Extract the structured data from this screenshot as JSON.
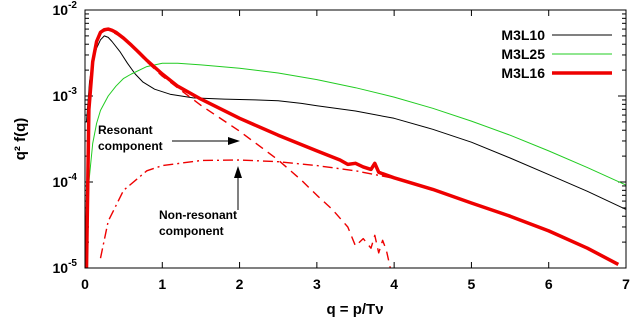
{
  "chart_data": {
    "type": "line",
    "xlabel": "q = p/Tν",
    "ylabel": "q² f(q)",
    "xlim": [
      0,
      7
    ],
    "ylim": [
      1e-05,
      0.01
    ],
    "yscale": "log",
    "x_ticks": [
      "0",
      "1",
      "2",
      "3",
      "4",
      "5",
      "6",
      "7"
    ],
    "y_ticks": [
      "10-5",
      "10-4",
      "10-3",
      "10-2"
    ],
    "legend_position": "top-right",
    "series": [
      {
        "name": "M3L10",
        "color": "#000000",
        "style": "solid",
        "width": "thin",
        "x": [
          0.02,
          0.06,
          0.1,
          0.15,
          0.2,
          0.25,
          0.3,
          0.35,
          0.45,
          0.55,
          0.65,
          0.75,
          0.9,
          1.1,
          1.4,
          1.8,
          2.2,
          2.5,
          2.8,
          3.0,
          3.5,
          4.0,
          4.5,
          5.0,
          5.5,
          6.0,
          6.5,
          7.0
        ],
        "y": [
          0.0005,
          0.0015,
          0.0025,
          0.0036,
          0.0045,
          0.005,
          0.0048,
          0.0043,
          0.0033,
          0.0024,
          0.0018,
          0.00145,
          0.0012,
          0.00105,
          0.00095,
          0.00092,
          0.0009,
          0.00088,
          0.00082,
          0.00077,
          0.00067,
          0.00055,
          0.00041,
          0.00029,
          0.00019,
          0.000122,
          7.8e-05,
          4.8e-05
        ]
      },
      {
        "name": "M3L25",
        "color": "#22cc22",
        "style": "solid",
        "width": "thin",
        "x": [
          0.02,
          0.05,
          0.1,
          0.15,
          0.2,
          0.3,
          0.4,
          0.5,
          0.6,
          0.8,
          1.0,
          1.2,
          1.5,
          2.0,
          2.5,
          3.0,
          3.5,
          4.0,
          4.5,
          5.0,
          5.5,
          6.0,
          6.5,
          7.0
        ],
        "y": [
          1e-05,
          0.0001,
          0.00028,
          0.00048,
          0.00068,
          0.001,
          0.0013,
          0.0016,
          0.0018,
          0.0022,
          0.0024,
          0.0024,
          0.0023,
          0.0021,
          0.00185,
          0.00155,
          0.00125,
          0.00097,
          0.00072,
          0.00051,
          0.00035,
          0.00023,
          0.000147,
          9.2e-05
        ]
      },
      {
        "name": "M3L16",
        "color": "#ee0000",
        "style": "solid",
        "width": "thick",
        "x": [
          0.02,
          0.05,
          0.1,
          0.15,
          0.2,
          0.25,
          0.3,
          0.35,
          0.4,
          0.5,
          0.6,
          0.7,
          0.8,
          1.0,
          1.2,
          1.5,
          2.0,
          2.5,
          3.0,
          3.3,
          3.4,
          3.5,
          3.6,
          3.7,
          3.75,
          3.8,
          3.85,
          4.0,
          4.5,
          5.0,
          5.5,
          6.0,
          6.5,
          6.9
        ],
        "y": [
          1e-05,
          0.0007,
          0.0025,
          0.0043,
          0.0055,
          0.0059,
          0.006,
          0.0058,
          0.0055,
          0.0047,
          0.0039,
          0.0032,
          0.0026,
          0.0018,
          0.0013,
          0.00092,
          0.00055,
          0.00035,
          0.00023,
          0.00018,
          0.00016,
          0.000165,
          0.00015,
          0.00014,
          0.000165,
          0.00013,
          0.000125,
          0.000112,
          8.2e-05,
          5.7e-05,
          4e-05,
          2.7e-05,
          1.7e-05,
          1.1e-05
        ]
      },
      {
        "color": "#ee0000",
        "style": "dashed",
        "x": [
          0.2,
          0.3,
          0.5,
          0.8,
          1.0,
          1.5,
          2.0,
          2.5,
          2.8,
          3.0,
          3.2,
          3.4,
          3.5,
          3.6,
          3.7,
          3.75,
          3.8,
          3.85,
          3.9,
          3.95
        ],
        "y": [
          0.0055,
          0.0059,
          0.0047,
          0.0025,
          0.0017,
          0.00078,
          0.00039,
          0.00018,
          0.000105,
          7e-05,
          4.8e-05,
          3e-05,
          1.8e-05,
          2.2e-05,
          1.7e-05,
          2.4e-05,
          1.5e-05,
          2.1e-05,
          1.6e-05,
          1e-05
        ]
      },
      {
        "color": "#ee0000",
        "style": "dashdot",
        "x": [
          0.2,
          0.3,
          0.5,
          0.8,
          1.0,
          1.5,
          2.0,
          2.5,
          3.0,
          3.5,
          4.0,
          4.5,
          5.0,
          5.5,
          6.0,
          6.5,
          6.9
        ],
        "y": [
          1.3e-05,
          3.5e-05,
          8e-05,
          0.000135,
          0.000155,
          0.000178,
          0.00018,
          0.000172,
          0.000155,
          0.000135,
          0.00011,
          8.2e-05,
          5.7e-05,
          4e-05,
          2.7e-05,
          1.7e-05,
          1.1e-05
        ]
      }
    ],
    "annotations": [
      {
        "lines": [
          "Resonant",
          "component"
        ],
        "points_to": "dashed curve"
      },
      {
        "lines": [
          "Non-resonant",
          "component"
        ],
        "points_to": "dash-dot curve"
      }
    ]
  }
}
